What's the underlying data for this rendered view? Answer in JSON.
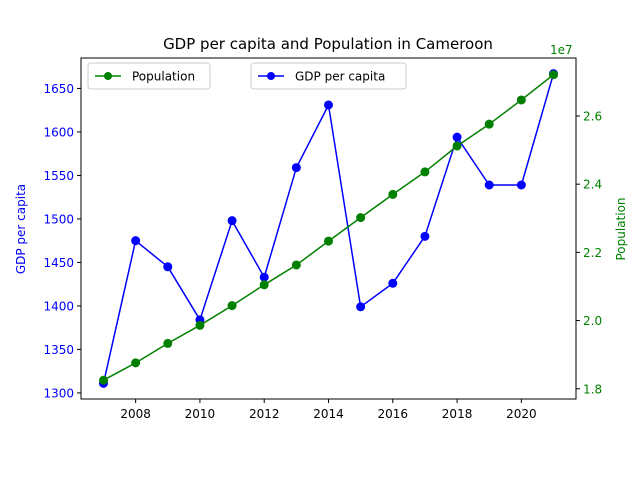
{
  "chart_data": {
    "type": "line",
    "title": "GDP per capita and Population in Cameroon",
    "xlabel": "",
    "x": [
      2007,
      2008,
      2009,
      2010,
      2011,
      2012,
      2013,
      2014,
      2015,
      2016,
      2017,
      2018,
      2019,
      2020,
      2021
    ],
    "x_ticks": [
      "2008",
      "2010",
      "2012",
      "2014",
      "2016",
      "2018",
      "2020"
    ],
    "xlim": [
      2006.3,
      2021.7
    ],
    "left_axis": {
      "label": "GDP per capita",
      "color": "#0000ff",
      "ylim": [
        1293,
        1685
      ],
      "ticks": [
        "1300",
        "1350",
        "1400",
        "1450",
        "1500",
        "1550",
        "1600",
        "1650"
      ]
    },
    "right_axis": {
      "label": "Population",
      "color": "#008000",
      "ylim": [
        17700000.0,
        27700000.0
      ],
      "multiplier": "1e7",
      "ticks": [
        "1.8",
        "2.0",
        "2.2",
        "2.4",
        "2.6"
      ]
    },
    "series": [
      {
        "name": "GDP per capita",
        "axis": "left",
        "color": "#0000ff",
        "values": [
          1311,
          1475,
          1445,
          1384,
          1498,
          1433,
          1559,
          1631,
          1399,
          1426,
          1480,
          1594,
          1539,
          1539,
          1667
        ]
      },
      {
        "name": "Population",
        "axis": "right",
        "color": "#008000",
        "values": [
          18250000,
          18760000,
          19330000,
          19860000,
          20440000,
          21050000,
          21630000,
          22330000,
          23020000,
          23700000,
          24360000,
          25120000,
          25760000,
          26470000,
          27210000
        ]
      }
    ],
    "legends": [
      {
        "entries": [
          "Population"
        ],
        "position": "upper-left"
      },
      {
        "entries": [
          "GDP per capita"
        ],
        "position": "upper-center"
      }
    ]
  }
}
